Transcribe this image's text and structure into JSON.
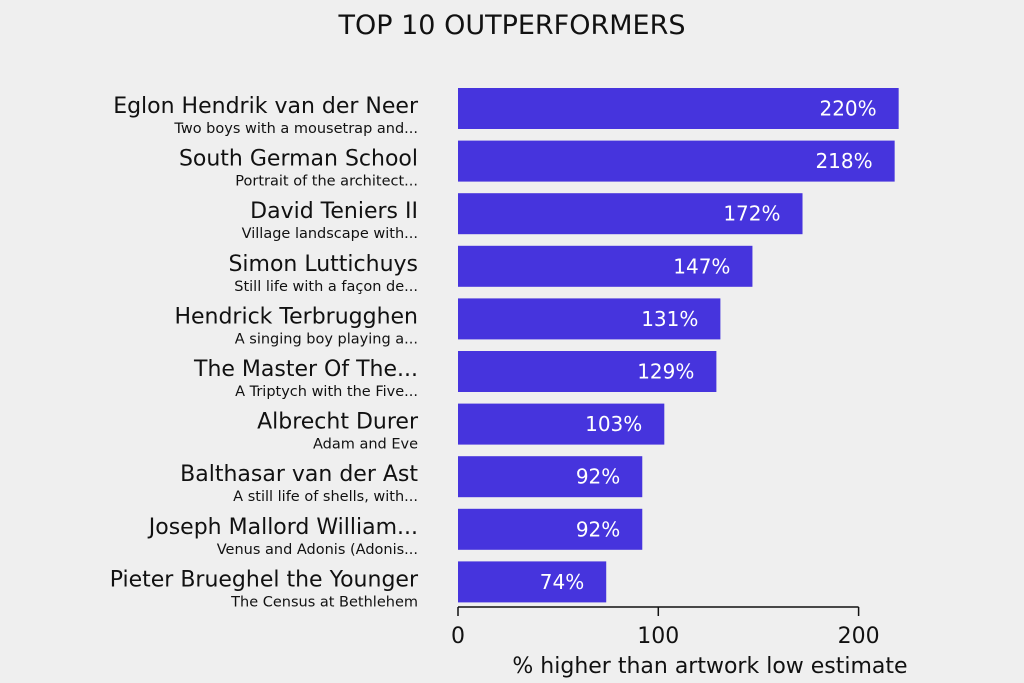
{
  "chart_data": {
    "type": "bar",
    "orientation": "horizontal",
    "title": "TOP 10 OUTPERFORMERS",
    "xlabel": "% higher than artwork low estimate",
    "ylabel": "",
    "xlim": [
      0,
      200
    ],
    "xticks": [
      "0",
      "100",
      "200"
    ],
    "grid": false,
    "bar_color": "#4634dd",
    "categories": [
      {
        "artist": "Eglon Hendrik van der Neer",
        "artwork": "Two boys with a mousetrap and..."
      },
      {
        "artist": "South German School",
        "artwork": "Portrait of the architect..."
      },
      {
        "artist": "David Teniers II",
        "artwork": "Village landscape with..."
      },
      {
        "artist": "Simon Luttichuys",
        "artwork": "Still life with a façon de..."
      },
      {
        "artist": "Hendrick Terbrugghen",
        "artwork": "A singing boy playing a..."
      },
      {
        "artist": "The Master Of The...",
        "artwork": "A Triptych with the Five..."
      },
      {
        "artist": "Albrecht Durer",
        "artwork": "Adam and Eve"
      },
      {
        "artist": "Balthasar van der Ast",
        "artwork": "A still life of shells, with..."
      },
      {
        "artist": "Joseph Mallord William...",
        "artwork": "Venus and Adonis (Adonis..."
      },
      {
        "artist": "Pieter Brueghel the Younger",
        "artwork": "The Census at Bethlehem"
      }
    ],
    "values": [
      220,
      218,
      172,
      147,
      131,
      129,
      103,
      92,
      92,
      74
    ],
    "data_labels": [
      "220%",
      "218%",
      "172%",
      "147%",
      "131%",
      "129%",
      "103%",
      "92%",
      "92%",
      "74%"
    ]
  }
}
